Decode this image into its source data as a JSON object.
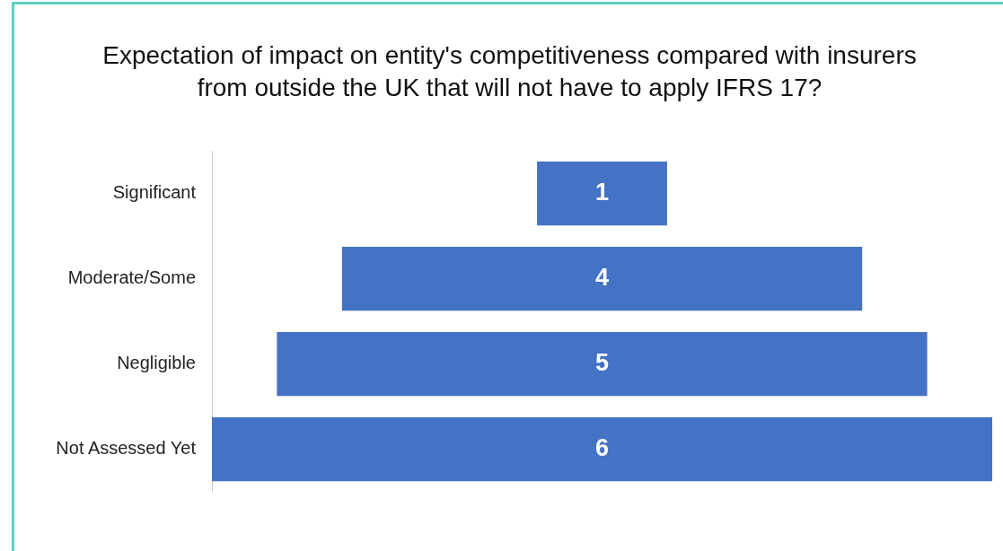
{
  "chart_data": {
    "type": "other",
    "title": "Expectation of impact on entity's competitiveness compared with insurers from outside the UK that will not have to apply IFRS 17?",
    "categories": [
      "Significant",
      "Moderate/Some",
      "Negligible",
      "Not Assessed Yet"
    ],
    "values": [
      1,
      4,
      5,
      6
    ],
    "color": "#4472c4",
    "data_labels": true
  }
}
